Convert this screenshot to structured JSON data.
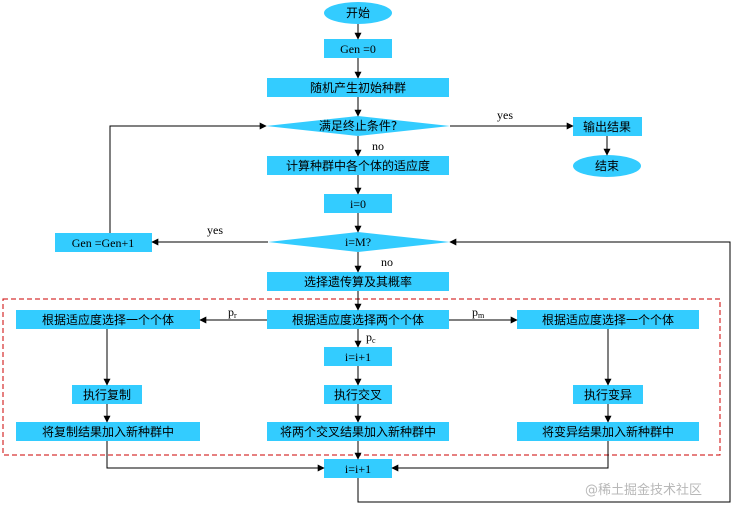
{
  "colors": {
    "box_fill": "#33CCFF",
    "line": "#000000",
    "dashed_border": "#CC0000",
    "watermark": "#b8b8b8"
  },
  "nodes": {
    "start": "开始",
    "gen0": "Gen =0",
    "init_pop": "随机产生初始种群",
    "term_cond": "满足终止条件?",
    "output": "输出结果",
    "end": "结束",
    "fitness": "计算种群中各个体的适应度",
    "i0": "i=0",
    "iM": "i=M?",
    "gen_inc": "Gen =Gen+1",
    "select_op": "选择遗传算及其概率",
    "select_left": "根据适应度选择一个个体",
    "select_two": "根据适应度选择两个个体",
    "select_right": "根据适应度选择一个个体",
    "i_inc_mid": "i=i+1",
    "copy": "执行复制",
    "crossover": "执行交叉",
    "mutate": "执行变异",
    "add_copy": "将复制结果加入新种群中",
    "add_cross": "将两个交叉结果加入新种群中",
    "add_mutate": "将变异结果加入新种群中",
    "i_inc_bottom": "i=i+1"
  },
  "edge_labels": {
    "yes_output": "yes",
    "no_fitness": "no",
    "yes_gen": "yes",
    "no_select": "no",
    "pr_main": "p",
    "pr_sub": "r",
    "pm_main": "p",
    "pm_sub": "m",
    "pc_main": "p",
    "pc_sub": "c"
  },
  "watermark": "@稀土掘金技术社区"
}
